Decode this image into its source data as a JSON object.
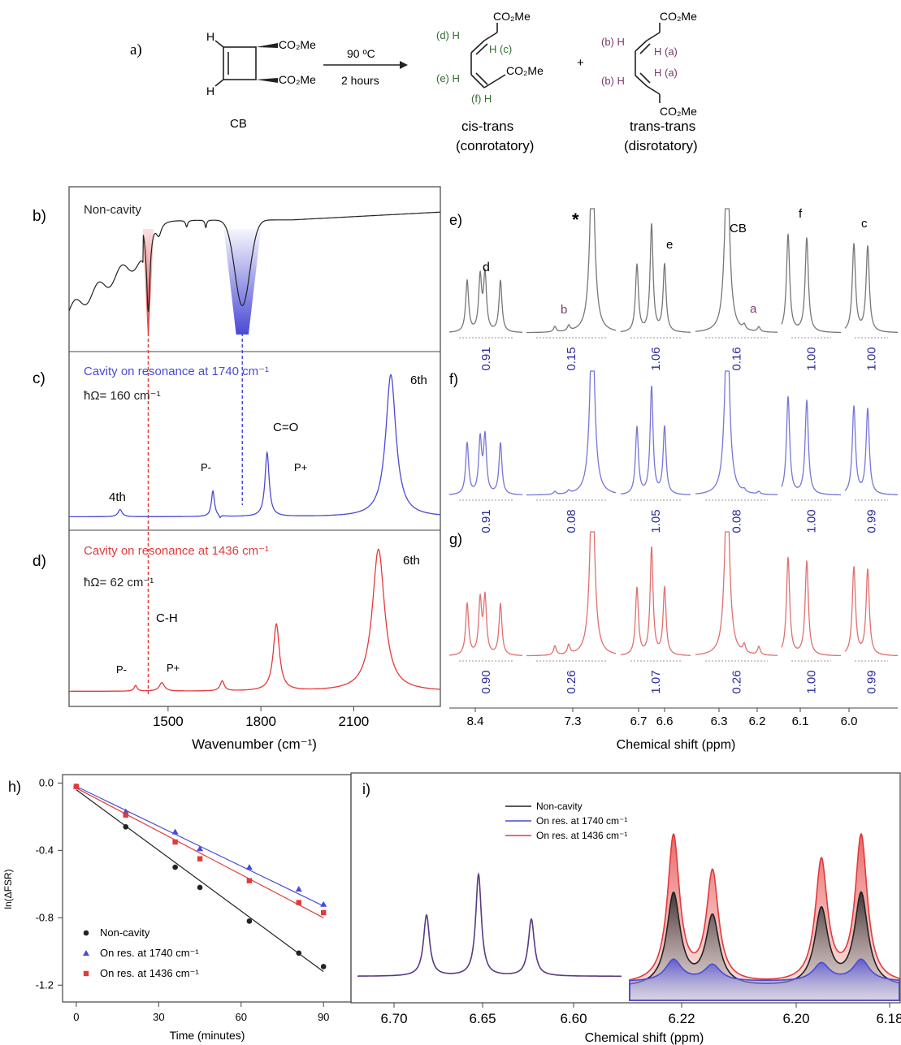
{
  "scheme": {
    "panel_label": "a)",
    "reactant_label": "CB",
    "h_atom": "H",
    "co2me": "CO₂Me",
    "conditions_top": "90 ºC",
    "conditions_bottom": "2 hours",
    "plus": "+",
    "ct": {
      "d": "(d) H",
      "c": "H (c)",
      "e": "(e) H",
      "f": "(f) H",
      "name1": "cis-trans",
      "name2": "(conrotatory)"
    },
    "tt": {
      "b1": "(b) H",
      "a1": "H (a)",
      "b2": "(b) H",
      "a2": "H (a)",
      "name1": "trans-trans",
      "name2": "(disrotatory)"
    }
  },
  "colors": {
    "black": "#222222",
    "blue": "#4a4ad6",
    "red": "#e23a3a",
    "purple": "#7a3a6e",
    "green": "#2e6e2e",
    "integral": "#2a2a9a"
  },
  "chart_data": [
    {
      "id": "ir",
      "type": "line",
      "xlabel": "Wavenumber (cm⁻¹)",
      "xlim": [
        1180,
        2380
      ],
      "xticks": [
        1500,
        1800,
        2100
      ],
      "panels": [
        {
          "label": "b)",
          "title": "Non-cavity",
          "annotations": []
        },
        {
          "label": "c)",
          "title": "Cavity on resonance at 1740 cm⁻¹",
          "subtitle": "ħΩ= 160 cm⁻¹",
          "annotations": [
            {
              "text": "4th",
              "x": 1345
            },
            {
              "text": "P-",
              "x": 1640
            },
            {
              "text": "C=O",
              "x": 1850
            },
            {
              "text": "P+",
              "x": 1880
            },
            {
              "text": "6th",
              "x": 2240
            }
          ]
        },
        {
          "label": "d)",
          "title": "Cavity on resonance at 1436 cm⁻¹",
          "subtitle": "ħΩ= 62 cm⁻¹",
          "annotations": [
            {
              "text": "C-H",
              "x": 1440
            },
            {
              "text": "P-",
              "x": 1360
            },
            {
              "text": "P+",
              "x": 1485
            },
            {
              "text": "6th",
              "x": 2195
            }
          ]
        }
      ],
      "markers": [
        {
          "x": 1436,
          "color": "red"
        },
        {
          "x": 1740,
          "color": "blue"
        }
      ]
    },
    {
      "id": "nmr",
      "type": "line",
      "xlabel": "Chemical shift (ppm)",
      "xticks": [
        "8.4",
        "7.3",
        "6.7",
        "6.6",
        "6.3",
        "6.2",
        "6.1",
        "6.0"
      ],
      "peak_labels": [
        "*",
        "d",
        "b",
        "e",
        "CB",
        "a",
        "f",
        "c"
      ],
      "panels": [
        {
          "label": "e)",
          "integrals": [
            "0.91",
            "0.15",
            "1.06",
            "0.16",
            "1.00",
            "1.00"
          ]
        },
        {
          "label": "f)",
          "integrals": [
            "0.91",
            "0.08",
            "1.05",
            "0.08",
            "1.00",
            "0.99"
          ]
        },
        {
          "label": "g)",
          "integrals": [
            "0.90",
            "0.26",
            "1.07",
            "0.26",
            "1.00",
            "0.99"
          ]
        }
      ]
    },
    {
      "id": "kinetics",
      "type": "scatter",
      "label": "h)",
      "xlabel": "Time (minutes)",
      "ylabel": "ln(ΔFSR)",
      "xlim": [
        -5,
        100
      ],
      "ylim": [
        -1.3,
        0.05
      ],
      "xticks": [
        0,
        30,
        60,
        90
      ],
      "yticks": [
        "0.0",
        "-0.4",
        "-0.8",
        "-1.2"
      ],
      "series": [
        {
          "name": "Non-cavity",
          "color": "black",
          "marker": "circle",
          "x": [
            0,
            18,
            36,
            45,
            63,
            81,
            90
          ],
          "y": [
            -0.02,
            -0.26,
            -0.5,
            -0.62,
            -0.82,
            -1.01,
            -1.09
          ],
          "fit": [
            -0.04,
            -1.12
          ]
        },
        {
          "name": "On res. at 1740 cm⁻¹",
          "color": "blue",
          "marker": "triangle",
          "x": [
            0,
            18,
            36,
            45,
            63,
            81,
            90
          ],
          "y": [
            -0.02,
            -0.17,
            -0.29,
            -0.39,
            -0.5,
            -0.63,
            -0.72
          ],
          "fit": [
            -0.02,
            -0.73
          ]
        },
        {
          "name": "On res. at 1436 cm⁻¹",
          "color": "red",
          "marker": "square",
          "x": [
            0,
            18,
            36,
            45,
            63,
            81,
            90
          ],
          "y": [
            -0.02,
            -0.19,
            -0.35,
            -0.45,
            -0.58,
            -0.71,
            -0.77
          ],
          "fit": [
            -0.03,
            -0.8
          ]
        }
      ]
    },
    {
      "id": "zoom",
      "type": "line",
      "label": "i)",
      "xlabel": "Chemical shift (ppm)",
      "xticks_left": [
        "6.70",
        "6.65",
        "6.60"
      ],
      "xticks_right": [
        "6.22",
        "6.20",
        "6.18"
      ],
      "legend": [
        "Non-cavity",
        "On res. at 1740 cm⁻¹",
        "On res. at 1436 cm⁻¹"
      ]
    }
  ]
}
